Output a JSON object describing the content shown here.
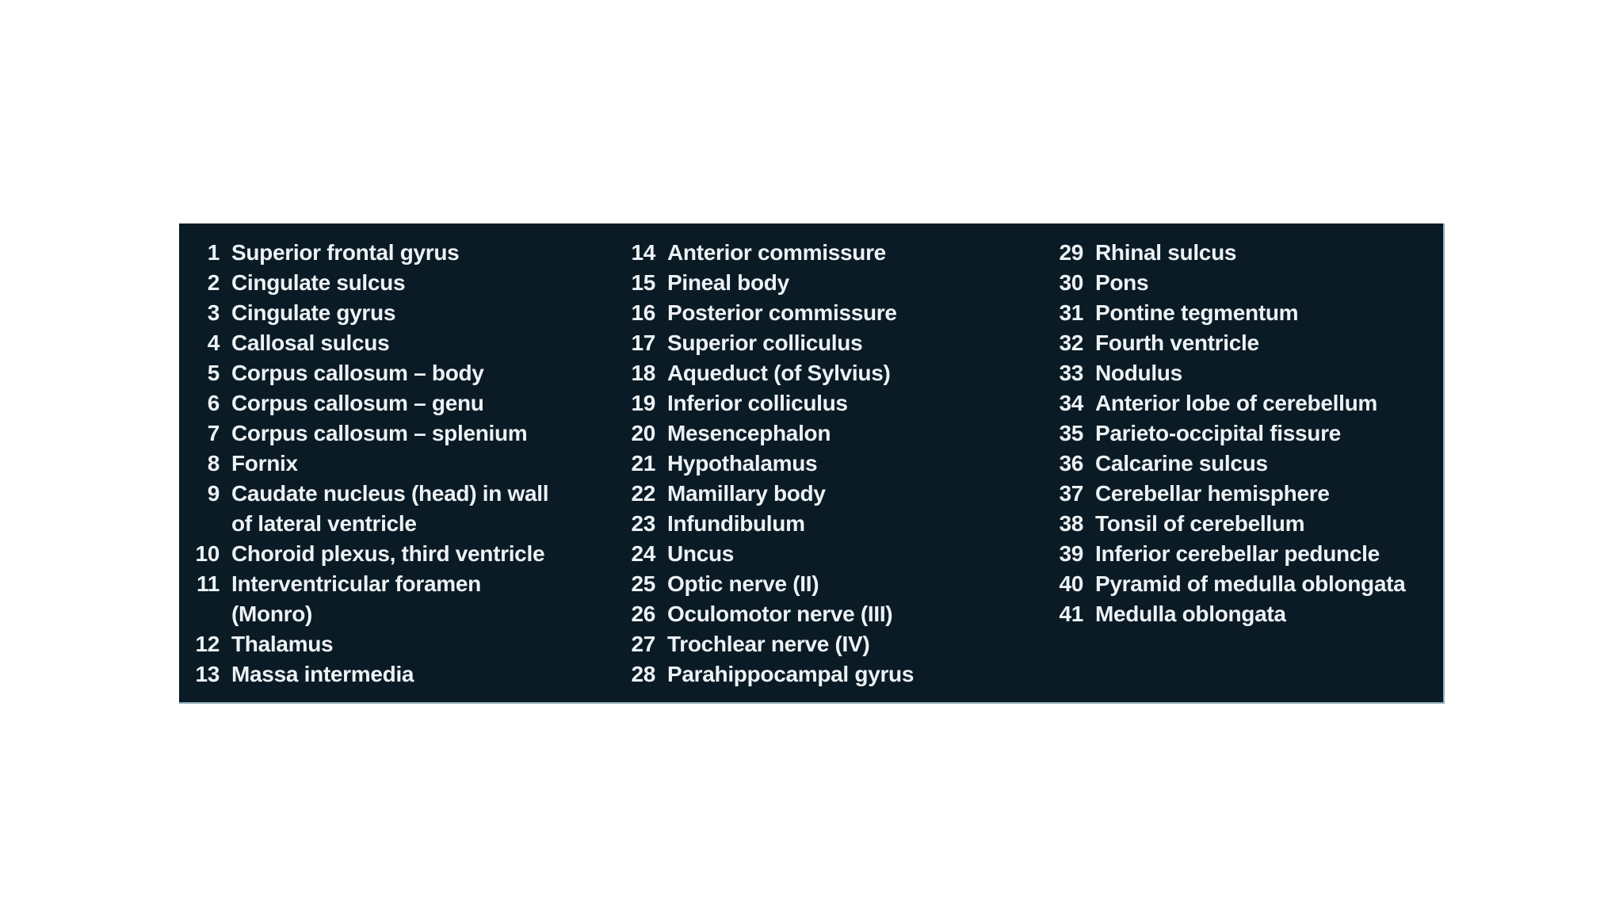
{
  "panel": {
    "background_color": "#0a1b26",
    "edge_color": "#93b2c0",
    "text_color": "#edf2f5"
  },
  "legend": {
    "columns": [
      {
        "name": "column-1",
        "items": [
          {
            "number": "1",
            "label": "Superior frontal gyrus"
          },
          {
            "number": "2",
            "label": "Cingulate sulcus"
          },
          {
            "number": "3",
            "label": "Cingulate gyrus"
          },
          {
            "number": "4",
            "label": "Callosal sulcus"
          },
          {
            "number": "5",
            "label": "Corpus callosum – body"
          },
          {
            "number": "6",
            "label": "Corpus callosum – genu"
          },
          {
            "number": "7",
            "label": "Corpus callosum – splenium"
          },
          {
            "number": "8",
            "label": "Fornix"
          },
          {
            "number": "9",
            "label": "Caudate nucleus (head) in wall\nof lateral ventricle"
          },
          {
            "number": "10",
            "label": "Choroid plexus, third ventricle"
          },
          {
            "number": "11",
            "label": "Interventricular foramen\n(Monro)"
          },
          {
            "number": "12",
            "label": "Thalamus"
          },
          {
            "number": "13",
            "label": "Massa intermedia"
          }
        ]
      },
      {
        "name": "column-2",
        "items": [
          {
            "number": "14",
            "label": "Anterior commissure"
          },
          {
            "number": "15",
            "label": "Pineal body"
          },
          {
            "number": "16",
            "label": "Posterior commissure"
          },
          {
            "number": "17",
            "label": "Superior colliculus"
          },
          {
            "number": "18",
            "label": "Aqueduct (of Sylvius)"
          },
          {
            "number": "19",
            "label": "Inferior colliculus"
          },
          {
            "number": "20",
            "label": "Mesencephalon"
          },
          {
            "number": "21",
            "label": "Hypothalamus"
          },
          {
            "number": "22",
            "label": "Mamillary body"
          },
          {
            "number": "23",
            "label": "Infundibulum"
          },
          {
            "number": "24",
            "label": "Uncus"
          },
          {
            "number": "25",
            "label": "Optic nerve (II)"
          },
          {
            "number": "26",
            "label": "Oculomotor nerve (III)"
          },
          {
            "number": "27",
            "label": "Trochlear nerve (IV)"
          },
          {
            "number": "28",
            "label": "Parahippocampal gyrus"
          }
        ]
      },
      {
        "name": "column-3",
        "items": [
          {
            "number": "29",
            "label": "Rhinal sulcus"
          },
          {
            "number": "30",
            "label": "Pons"
          },
          {
            "number": "31",
            "label": "Pontine tegmentum"
          },
          {
            "number": "32",
            "label": "Fourth ventricle"
          },
          {
            "number": "33",
            "label": "Nodulus"
          },
          {
            "number": "34",
            "label": "Anterior lobe of cerebellum"
          },
          {
            "number": "35",
            "label": "Parieto-occipital fissure"
          },
          {
            "number": "36",
            "label": "Calcarine sulcus"
          },
          {
            "number": "37",
            "label": "Cerebellar hemisphere"
          },
          {
            "number": "38",
            "label": "Tonsil of cerebellum"
          },
          {
            "number": "39",
            "label": "Inferior cerebellar peduncle"
          },
          {
            "number": "40",
            "label": "Pyramid of medulla oblongata"
          },
          {
            "number": "41",
            "label": "Medulla oblongata"
          }
        ]
      }
    ]
  }
}
